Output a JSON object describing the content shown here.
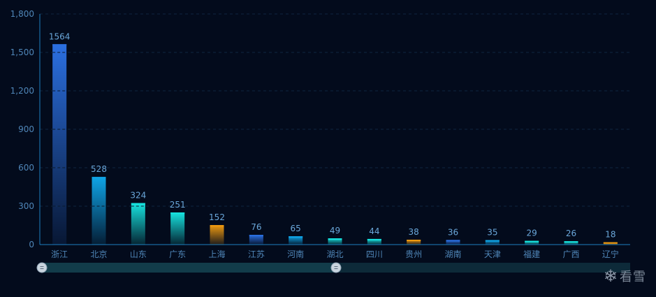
{
  "colors": {
    "background": "#030b1c",
    "axis": "#1c7fc0",
    "grid": "#0f2640",
    "blue": "#2b6fe0",
    "sky": "#0fa5e8",
    "cyan": "#17e3df",
    "orange": "#ef9a10",
    "slider_track": "#0d2a39",
    "slider_fill": "#123c4a"
  },
  "chart_data": {
    "type": "bar",
    "categories": [
      "浙江",
      "北京",
      "山东",
      "广东",
      "上海",
      "江苏",
      "河南",
      "湖北",
      "四川",
      "贵州",
      "湖南",
      "天津",
      "福建",
      "广西",
      "辽宁"
    ],
    "values": [
      1564,
      528,
      324,
      251,
      152,
      76,
      65,
      49,
      44,
      38,
      36,
      35,
      29,
      26,
      18
    ],
    "value_labels": [
      "1564",
      "528",
      "324",
      "251",
      "152",
      "76",
      "65",
      "49",
      "44",
      "38",
      "36",
      "35",
      "29",
      "26",
      "18"
    ],
    "bar_colors": [
      "blue",
      "sky",
      "cyan",
      "cyan",
      "orange",
      "blue",
      "sky",
      "cyan",
      "cyan",
      "orange",
      "blue",
      "sky",
      "cyan",
      "cyan",
      "orange"
    ],
    "y_ticks": [
      0,
      300,
      600,
      900,
      1200,
      1500,
      1800
    ],
    "y_tick_labels": [
      "0",
      "300",
      "600",
      "900",
      "1,200",
      "1,500",
      "1,800"
    ],
    "ylim": [
      0,
      1800
    ],
    "grid": true,
    "zoom_slider": {
      "start": 0,
      "end": 0.5
    }
  },
  "watermark": {
    "icon": "snowflake-icon",
    "glyph": "❄",
    "text": "看雪"
  }
}
